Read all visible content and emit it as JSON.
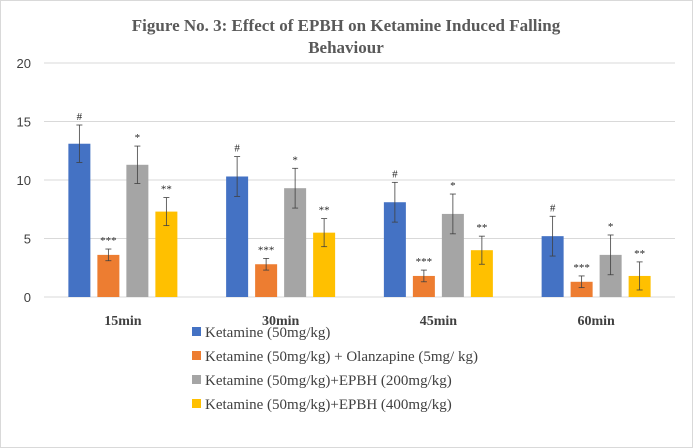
{
  "chart_data": {
    "type": "bar",
    "title": "Figure No. 3: Effect of EPBH on Ketamine Induced Falling Behaviour",
    "title_lines": [
      "Figure No. 3: Effect of EPBH on Ketamine Induced Falling",
      "Behaviour"
    ],
    "categories": [
      "15min",
      "30min",
      "45min",
      "60min"
    ],
    "ylim": [
      0,
      20
    ],
    "yticks": [
      "0",
      "5",
      "10",
      "15",
      "20"
    ],
    "grid": true,
    "legend_position": "bottom",
    "series": [
      {
        "name": "Ketamine (50mg/kg)",
        "color": "#4472C4",
        "values": [
          13.1,
          10.3,
          8.1,
          5.2
        ],
        "errors": [
          1.6,
          1.7,
          1.7,
          1.7
        ],
        "annotations": [
          "#",
          "#",
          "#",
          "#"
        ]
      },
      {
        "name": "Ketamine (50mg/kg) + Olanzapine (5mg/ kg)",
        "color": "#ED7D31",
        "values": [
          3.6,
          2.8,
          1.8,
          1.3
        ],
        "errors": [
          0.5,
          0.5,
          0.5,
          0.5
        ],
        "annotations": [
          "***",
          "***",
          "***",
          "***"
        ]
      },
      {
        "name": "Ketamine (50mg/kg)+EPBH (200mg/kg)",
        "color": "#A5A5A5",
        "values": [
          11.3,
          9.3,
          7.1,
          3.6
        ],
        "errors": [
          1.6,
          1.7,
          1.7,
          1.7
        ],
        "annotations": [
          "*",
          "*",
          "*",
          "*"
        ]
      },
      {
        "name": "Ketamine (50mg/kg)+EPBH (400mg/kg)",
        "color": "#FFC000",
        "values": [
          7.3,
          5.5,
          4.0,
          1.8
        ],
        "errors": [
          1.2,
          1.2,
          1.2,
          1.2
        ],
        "annotations": [
          "**",
          "**",
          "**",
          "**"
        ]
      }
    ]
  }
}
